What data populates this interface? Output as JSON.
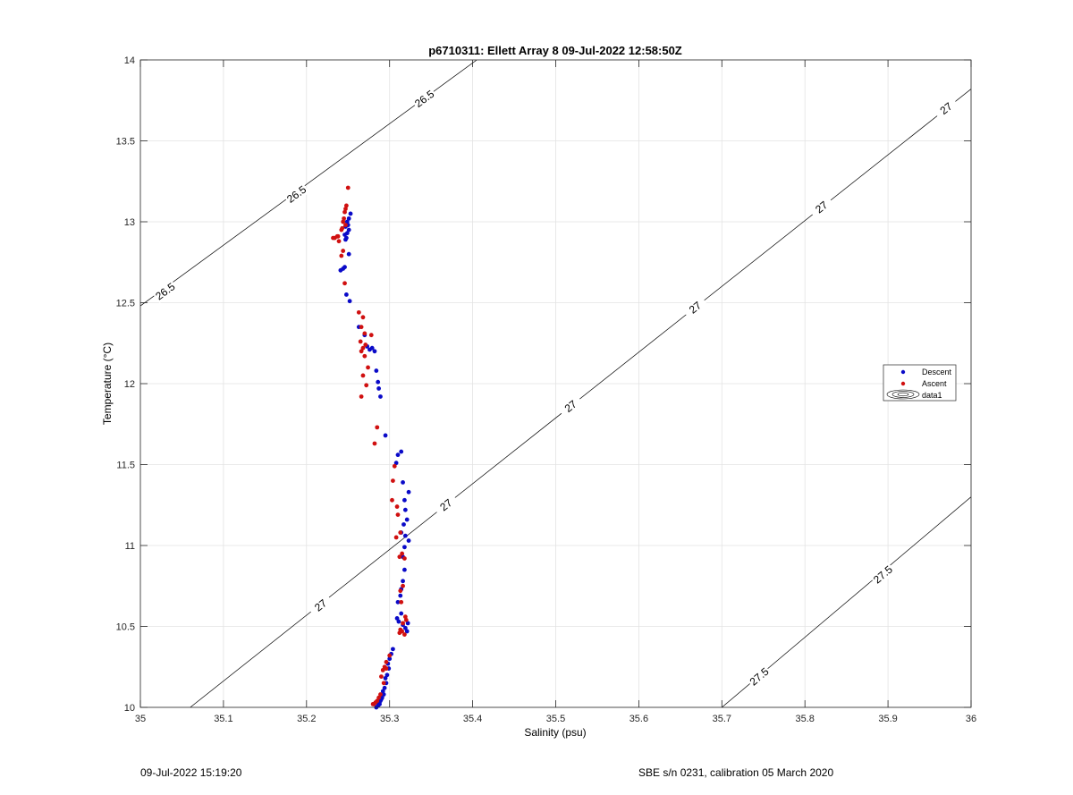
{
  "chart_data": {
    "type": "scatter",
    "title": "p6710311: Ellett Array 8 09-Jul-2022 12:58:50Z",
    "xlabel": "Salinity (psu)",
    "ylabel": "Temperature (°C)",
    "xlim": [
      35,
      36
    ],
    "ylim": [
      10,
      14
    ],
    "xticks": [
      "35",
      "35.1",
      "35.2",
      "35.3",
      "35.4",
      "35.5",
      "35.6",
      "35.7",
      "35.8",
      "35.9",
      "36"
    ],
    "yticks": [
      "10",
      "10.5",
      "11",
      "11.5",
      "12",
      "12.5",
      "13",
      "13.5",
      "14"
    ],
    "grid": true,
    "legend_position": "right",
    "legend": [
      {
        "label": "Descent",
        "color": "#0a0ac8"
      },
      {
        "label": "Ascent",
        "color": "#d01010"
      },
      {
        "label": "data1",
        "color": "#000000"
      }
    ],
    "contours": [
      {
        "level": "26.5",
        "points": [
          [
            35.0,
            12.48
          ],
          [
            35.405,
            14.0
          ]
        ],
        "labels": [
          [
            35.03,
            12.57
          ],
          [
            35.188,
            13.17
          ],
          [
            35.342,
            13.76
          ]
        ]
      },
      {
        "level": "27",
        "points": [
          [
            35.06,
            10.0
          ],
          [
            36.0,
            13.82
          ]
        ],
        "labels": [
          [
            35.217,
            10.63
          ],
          [
            35.368,
            11.25
          ],
          [
            35.518,
            11.86
          ],
          [
            35.668,
            12.47
          ],
          [
            35.82,
            13.09
          ],
          [
            35.97,
            13.7
          ]
        ]
      },
      {
        "level": "27.5",
        "points": [
          [
            35.7,
            10.0
          ],
          [
            36.0,
            11.3
          ]
        ],
        "labels": [
          [
            35.745,
            10.19
          ],
          [
            35.894,
            10.82
          ]
        ]
      }
    ],
    "series": [
      {
        "name": "Descent",
        "color": "#0a0ac8",
        "x": [
          35.253,
          35.251,
          35.249,
          35.25,
          35.247,
          35.251,
          35.249,
          35.246,
          35.248,
          35.247,
          35.251,
          35.246,
          35.244,
          35.241,
          35.248,
          35.252,
          35.263,
          35.27,
          35.273,
          35.276,
          35.279,
          35.282,
          35.284,
          35.286,
          35.287,
          35.289,
          35.295,
          35.314,
          35.31,
          35.308,
          35.316,
          35.323,
          35.318,
          35.319,
          35.321,
          35.317,
          35.314,
          35.319,
          35.323,
          35.318,
          35.316,
          35.318,
          35.316,
          35.314,
          35.313,
          35.31,
          35.314,
          35.309,
          35.311,
          35.316,
          35.319,
          35.321,
          35.322,
          35.304,
          35.302,
          35.3,
          35.298,
          35.299,
          35.297,
          35.295,
          35.296,
          35.294,
          35.292,
          35.293,
          35.291,
          35.29,
          35.289,
          35.287,
          35.288,
          35.286,
          35.284
        ],
        "y": [
          13.05,
          13.02,
          13.0,
          12.98,
          12.97,
          12.95,
          12.93,
          12.92,
          12.9,
          12.89,
          12.8,
          12.72,
          12.71,
          12.7,
          12.55,
          12.51,
          12.35,
          12.3,
          12.23,
          12.21,
          12.22,
          12.2,
          12.08,
          12.01,
          11.97,
          11.92,
          11.68,
          11.58,
          11.56,
          11.51,
          11.39,
          11.33,
          11.28,
          11.22,
          11.16,
          11.13,
          11.08,
          11.06,
          11.03,
          10.99,
          10.93,
          10.85,
          10.78,
          10.73,
          10.69,
          10.65,
          10.58,
          10.55,
          10.53,
          10.51,
          10.49,
          10.47,
          10.52,
          10.36,
          10.33,
          10.3,
          10.27,
          10.24,
          10.2,
          10.18,
          10.15,
          10.12,
          10.1,
          10.08,
          10.06,
          10.05,
          10.04,
          10.03,
          10.02,
          10.01,
          10.0
        ]
      },
      {
        "name": "Ascent",
        "color": "#d01010",
        "x": [
          35.25,
          35.248,
          35.247,
          35.246,
          35.245,
          35.244,
          35.247,
          35.243,
          35.242,
          35.238,
          35.237,
          35.232,
          35.239,
          35.234,
          35.244,
          35.242,
          35.246,
          35.263,
          35.268,
          35.266,
          35.27,
          35.278,
          35.265,
          35.271,
          35.268,
          35.266,
          35.27,
          35.274,
          35.268,
          35.272,
          35.266,
          35.285,
          35.282,
          35.306,
          35.304,
          35.303,
          35.309,
          35.31,
          35.313,
          35.308,
          35.315,
          35.312,
          35.318,
          35.316,
          35.313,
          35.314,
          35.319,
          35.32,
          35.316,
          35.313,
          35.315,
          35.318,
          35.312,
          35.3,
          35.296,
          35.294,
          35.296,
          35.292,
          35.29,
          35.293,
          35.289,
          35.287,
          35.285,
          35.283,
          35.281,
          35.28
        ],
        "y": [
          13.21,
          13.1,
          13.08,
          13.06,
          13.02,
          13.0,
          12.98,
          12.96,
          12.95,
          12.91,
          12.91,
          12.9,
          12.88,
          12.9,
          12.82,
          12.79,
          12.62,
          12.44,
          12.41,
          12.35,
          12.31,
          12.3,
          12.26,
          12.24,
          12.22,
          12.2,
          12.17,
          12.1,
          12.05,
          11.99,
          11.92,
          11.73,
          11.63,
          11.49,
          11.4,
          11.28,
          11.24,
          11.19,
          11.08,
          11.05,
          10.95,
          10.93,
          10.92,
          10.75,
          10.72,
          10.65,
          10.56,
          10.54,
          10.52,
          10.48,
          10.47,
          10.45,
          10.46,
          10.32,
          10.28,
          10.25,
          10.24,
          10.23,
          10.19,
          10.15,
          10.08,
          10.06,
          10.04,
          10.03,
          10.02,
          10.02
        ]
      }
    ]
  },
  "footer": {
    "left": "09-Jul-2022 15:19:20",
    "right": "SBE s/n 0231, calibration 05 March 2020"
  }
}
